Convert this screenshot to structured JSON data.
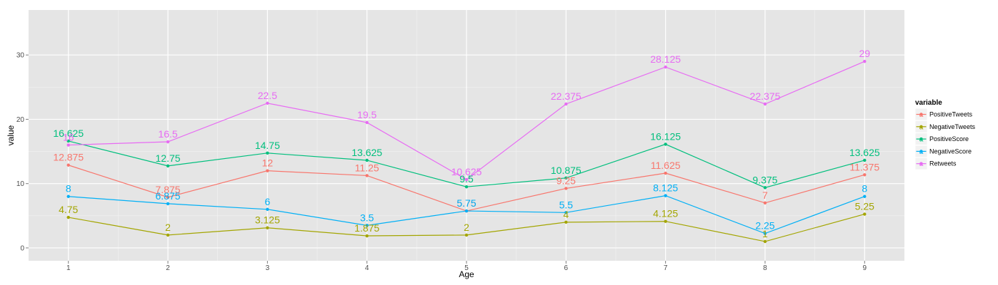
{
  "chart_data": {
    "type": "line",
    "xlabel": "Age",
    "ylabel": "value",
    "x": [
      1,
      2,
      3,
      4,
      5,
      6,
      7,
      8,
      9
    ],
    "xlim": [
      0.6,
      9.4
    ],
    "ylim": [
      -2,
      37
    ],
    "yticks": [
      0,
      10,
      20,
      30
    ],
    "grid": true,
    "legend": {
      "title": "variable",
      "position": "right"
    },
    "series": [
      {
        "name": "PositiveTweets",
        "color": "#F8766D",
        "values": [
          12.875,
          7.875,
          12,
          11.25,
          5.75,
          9.25,
          11.625,
          7,
          11.375
        ]
      },
      {
        "name": "NegativeTweets",
        "color": "#A3A500",
        "values": [
          4.75,
          2,
          3.125,
          1.875,
          2,
          4,
          4.125,
          1,
          5.25
        ]
      },
      {
        "name": "PositiveScore",
        "color": "#00BF7D",
        "values": [
          16.625,
          12.75,
          14.75,
          13.625,
          9.5,
          10.875,
          16.125,
          9.375,
          13.625
        ]
      },
      {
        "name": "NegativeScore",
        "color": "#00B0F6",
        "values": [
          8,
          6.875,
          6,
          3.5,
          5.75,
          5.5,
          8.125,
          2.25,
          8
        ]
      },
      {
        "name": "Retweets",
        "color": "#E76BF3",
        "values": [
          16,
          16.5,
          22.5,
          19.5,
          10.625,
          22.375,
          28.125,
          22.375,
          29
        ]
      }
    ]
  }
}
